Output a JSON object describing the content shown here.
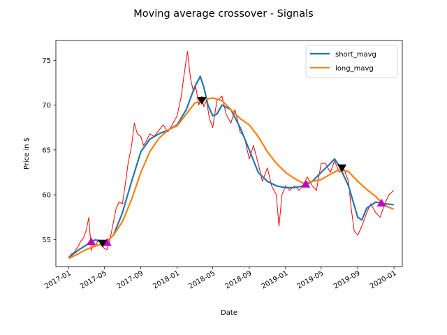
{
  "chart_data": {
    "type": "line",
    "title": "Moving average crossover - Signals",
    "xlabel": "Date",
    "ylabel": "Price in $",
    "xlim": [
      "2016-11-19",
      "2020-01-29"
    ],
    "ylim": [
      52.0,
      77.2
    ],
    "y_ticks": [
      55,
      60,
      65,
      70,
      75
    ],
    "x_ticks": [
      "2017-01",
      "2017-05",
      "2017-09",
      "2018-01",
      "2018-05",
      "2018-09",
      "2019-01",
      "2019-05",
      "2019-09",
      "2020-01"
    ],
    "legend": {
      "position": "upper right",
      "entries": [
        "short_mavg",
        "long_mavg"
      ]
    },
    "grid": false,
    "series": [
      {
        "name": "price",
        "color": "#ff0000",
        "style": "thin-line",
        "x": [
          "2017-01-01",
          "2017-01-10",
          "2017-01-20",
          "2017-02-01",
          "2017-02-10",
          "2017-02-20",
          "2017-03-01",
          "2017-03-10",
          "2017-03-18",
          "2017-03-25",
          "2017-04-01",
          "2017-04-10",
          "2017-04-20",
          "2017-05-01",
          "2017-05-10",
          "2017-05-20",
          "2017-06-01",
          "2017-06-10",
          "2017-06-20",
          "2017-07-01",
          "2017-07-10",
          "2017-07-20",
          "2017-08-01",
          "2017-08-10",
          "2017-08-20",
          "2017-09-01",
          "2017-09-10",
          "2017-09-20",
          "2017-10-01",
          "2017-10-15",
          "2017-11-01",
          "2017-11-15",
          "2017-12-01",
          "2017-12-15",
          "2018-01-01",
          "2018-01-15",
          "2018-01-25",
          "2018-02-05",
          "2018-02-15",
          "2018-02-25",
          "2018-03-05",
          "2018-03-15",
          "2018-03-25",
          "2018-04-01",
          "2018-04-10",
          "2018-04-20",
          "2018-05-01",
          "2018-05-15",
          "2018-06-01",
          "2018-06-15",
          "2018-07-01",
          "2018-07-15",
          "2018-08-01",
          "2018-08-15",
          "2018-09-01",
          "2018-09-15",
          "2018-10-01",
          "2018-10-15",
          "2018-11-01",
          "2018-11-15",
          "2018-12-01",
          "2018-12-10",
          "2018-12-20",
          "2019-01-01",
          "2019-01-15",
          "2019-02-01",
          "2019-02-15",
          "2019-03-01",
          "2019-03-15",
          "2019-04-01",
          "2019-04-15",
          "2019-05-01",
          "2019-05-15",
          "2019-06-01",
          "2019-06-15",
          "2019-07-01",
          "2019-07-15",
          "2019-08-01",
          "2019-08-10",
          "2019-08-20",
          "2019-09-01",
          "2019-09-15",
          "2019-10-01",
          "2019-10-15",
          "2019-11-01",
          "2019-11-15",
          "2019-12-01",
          "2019-12-15",
          "2019-12-31"
        ],
        "y": [
          53.0,
          53.4,
          53.6,
          54.2,
          54.8,
          55.2,
          56.0,
          57.5,
          53.8,
          54.5,
          54.2,
          55.0,
          54.6,
          54.0,
          53.9,
          55.0,
          57.0,
          58.5,
          59.2,
          59.0,
          61.0,
          63.5,
          65.5,
          68.0,
          66.8,
          66.5,
          65.5,
          66.0,
          66.8,
          66.5,
          67.2,
          67.8,
          67.0,
          67.8,
          68.8,
          71.0,
          73.5,
          76.0,
          73.0,
          71.5,
          72.0,
          70.0,
          71.0,
          69.8,
          70.5,
          68.5,
          67.5,
          70.5,
          71.0,
          69.0,
          68.0,
          69.5,
          67.0,
          66.5,
          64.0,
          65.5,
          63.5,
          61.5,
          63.0,
          61.0,
          60.0,
          56.5,
          60.0,
          61.0,
          60.5,
          61.0,
          60.5,
          61.0,
          62.0,
          61.0,
          60.5,
          63.5,
          63.5,
          62.5,
          63.8,
          62.5,
          63.0,
          61.5,
          58.5,
          56.0,
          55.5,
          56.5,
          58.0,
          59.0,
          58.0,
          57.5,
          59.0,
          60.0,
          60.5
        ]
      },
      {
        "name": "short_mavg",
        "color": "#1f77b4",
        "x": [
          "2017-01-01",
          "2017-02-01",
          "2017-03-01",
          "2017-04-01",
          "2017-05-01",
          "2017-06-01",
          "2017-07-01",
          "2017-08-01",
          "2017-09-01",
          "2017-10-01",
          "2017-11-01",
          "2017-12-01",
          "2018-01-01",
          "2018-02-01",
          "2018-03-01",
          "2018-03-20",
          "2018-04-01",
          "2018-04-15",
          "2018-05-01",
          "2018-05-15",
          "2018-06-01",
          "2018-07-01",
          "2018-08-01",
          "2018-09-01",
          "2018-10-01",
          "2018-11-01",
          "2018-12-01",
          "2019-01-01",
          "2019-02-01",
          "2019-03-01",
          "2019-04-01",
          "2019-05-01",
          "2019-06-01",
          "2019-06-15",
          "2019-07-01",
          "2019-08-01",
          "2019-09-01",
          "2019-09-15",
          "2019-10-01",
          "2019-11-01",
          "2019-12-01",
          "2019-12-31"
        ],
        "y": [
          53.0,
          53.8,
          54.4,
          55.0,
          54.6,
          55.5,
          58.0,
          61.5,
          64.8,
          66.2,
          66.8,
          67.2,
          67.8,
          69.5,
          72.0,
          73.2,
          72.0,
          70.0,
          68.8,
          69.0,
          70.0,
          69.5,
          67.5,
          65.0,
          62.5,
          61.5,
          61.0,
          60.8,
          60.8,
          61.0,
          61.5,
          62.5,
          63.5,
          64.0,
          63.2,
          61.0,
          57.5,
          57.2,
          58.5,
          59.2,
          59.0,
          58.9
        ]
      },
      {
        "name": "long_mavg",
        "color": "#ff7f0e",
        "x": [
          "2017-01-01",
          "2017-02-01",
          "2017-03-01",
          "2017-04-01",
          "2017-05-01",
          "2017-06-01",
          "2017-07-01",
          "2017-08-01",
          "2017-09-01",
          "2017-10-01",
          "2017-11-01",
          "2017-12-01",
          "2018-01-01",
          "2018-02-01",
          "2018-03-01",
          "2018-04-01",
          "2018-05-01",
          "2018-06-01",
          "2018-07-01",
          "2018-08-01",
          "2018-09-01",
          "2018-10-01",
          "2018-11-01",
          "2018-12-01",
          "2019-01-01",
          "2019-02-01",
          "2019-03-01",
          "2019-04-01",
          "2019-05-01",
          "2019-06-01",
          "2019-07-01",
          "2019-08-01",
          "2019-09-01",
          "2019-10-01",
          "2019-11-01",
          "2019-12-01",
          "2019-12-31"
        ],
        "y": [
          52.9,
          53.4,
          53.9,
          54.3,
          54.6,
          55.5,
          57.0,
          59.5,
          62.5,
          64.8,
          66.3,
          67.2,
          67.7,
          69.0,
          70.2,
          70.6,
          70.8,
          70.5,
          69.5,
          68.5,
          67.8,
          66.5,
          64.8,
          63.5,
          62.5,
          61.8,
          61.3,
          61.5,
          61.7,
          62.3,
          62.8,
          62.6,
          61.5,
          60.6,
          59.8,
          58.8,
          58.4
        ]
      }
    ],
    "signals": {
      "buy": {
        "color": "#bf00bf",
        "marker": "triangle-up",
        "points": [
          [
            "2017-03-18",
            54.8
          ],
          [
            "2017-05-10",
            54.7
          ],
          [
            "2019-03-10",
            61.2
          ],
          [
            "2019-11-20",
            59.1
          ]
        ]
      },
      "sell": {
        "color": "#000000",
        "marker": "triangle-down",
        "points": [
          [
            "2017-04-25",
            54.6
          ],
          [
            "2018-03-25",
            70.5
          ],
          [
            "2019-07-10",
            63.0
          ]
        ]
      }
    }
  }
}
